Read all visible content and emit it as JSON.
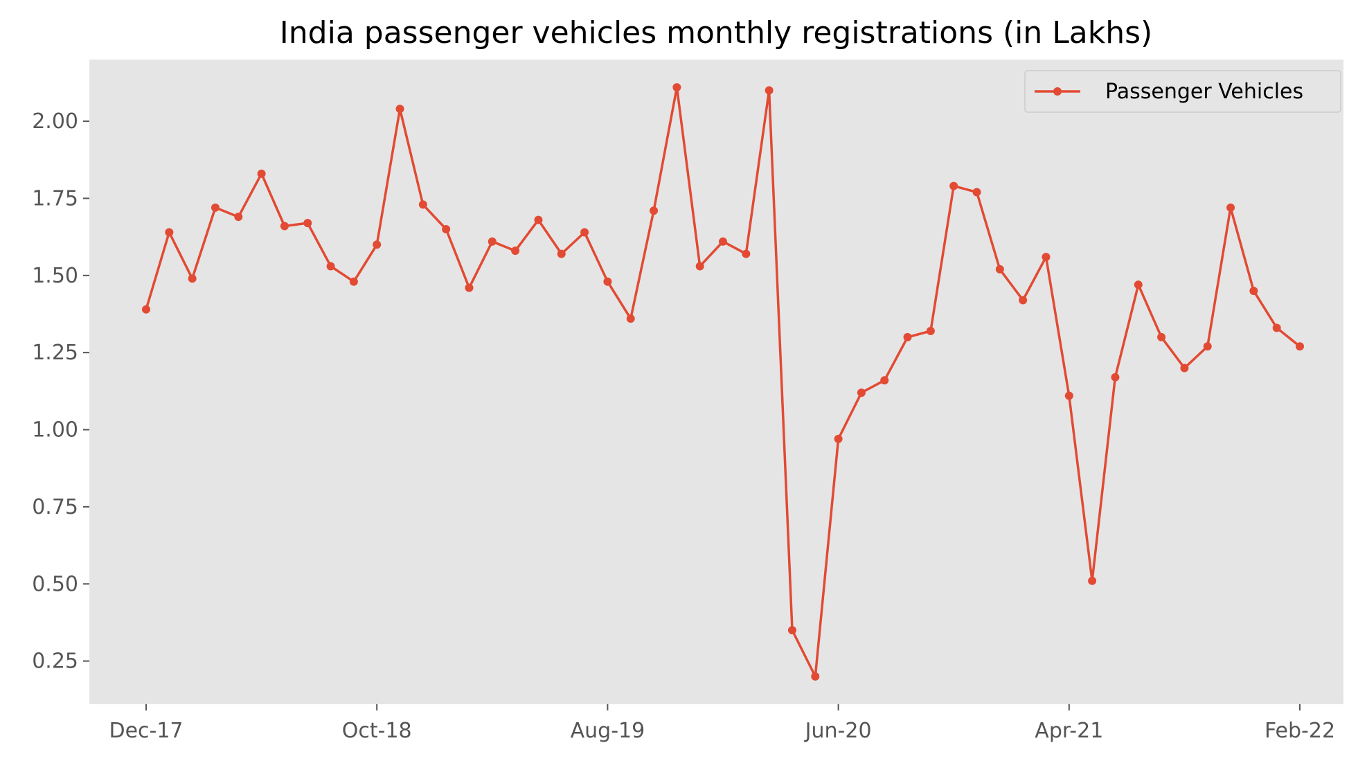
{
  "chart_data": {
    "type": "line",
    "title": "India passenger vehicles monthly registrations (in Lakhs)",
    "xlabel": "",
    "ylabel": "",
    "x": [
      "Dec-17",
      "Jan-18",
      "Feb-18",
      "Mar-18",
      "Apr-18",
      "May-18",
      "Jun-18",
      "Jul-18",
      "Aug-18",
      "Sep-18",
      "Oct-18",
      "Nov-18",
      "Dec-18",
      "Jan-19",
      "Feb-19",
      "Mar-19",
      "Apr-19",
      "May-19",
      "Jun-19",
      "Jul-19",
      "Aug-19",
      "Sep-19",
      "Oct-19",
      "Nov-19",
      "Dec-19",
      "Jan-20",
      "Feb-20",
      "Mar-20",
      "Apr-20",
      "May-20",
      "Jun-20",
      "Jul-20",
      "Aug-20",
      "Sep-20",
      "Oct-20",
      "Nov-20",
      "Dec-20",
      "Jan-21",
      "Feb-21",
      "Mar-21",
      "Apr-21",
      "May-21",
      "Jun-21",
      "Jul-21",
      "Aug-21",
      "Sep-21",
      "Oct-21",
      "Nov-21",
      "Dec-21",
      "Jan-22",
      "Feb-22"
    ],
    "x_ticks": [
      "Dec-17",
      "Oct-18",
      "Aug-19",
      "Jun-20",
      "Apr-21",
      "Feb-22"
    ],
    "series": [
      {
        "name": "Passenger Vehicles",
        "values": [
          1.39,
          1.64,
          1.49,
          1.72,
          1.69,
          1.83,
          1.66,
          1.67,
          1.53,
          1.48,
          1.6,
          2.04,
          1.73,
          1.65,
          1.46,
          1.61,
          1.58,
          1.68,
          1.57,
          1.64,
          1.48,
          1.36,
          1.71,
          2.11,
          1.53,
          1.61,
          1.57,
          2.1,
          0.35,
          0.2,
          0.97,
          1.12,
          1.16,
          1.3,
          1.32,
          1.79,
          1.77,
          1.52,
          1.42,
          1.56,
          1.11,
          0.51,
          1.17,
          1.47,
          1.3,
          1.2,
          1.27,
          1.72,
          1.45,
          1.33,
          1.27
        ]
      }
    ],
    "y_ticks": [
      0.25,
      0.5,
      0.75,
      1.0,
      1.25,
      1.5,
      1.75,
      2.0
    ],
    "ylim": [
      0.11,
      2.2
    ],
    "grid": false,
    "legend_position": "top-right",
    "colors": {
      "line": "#E24A33",
      "axes_bg": "#E5E5E5",
      "tick_text": "#555555"
    }
  }
}
